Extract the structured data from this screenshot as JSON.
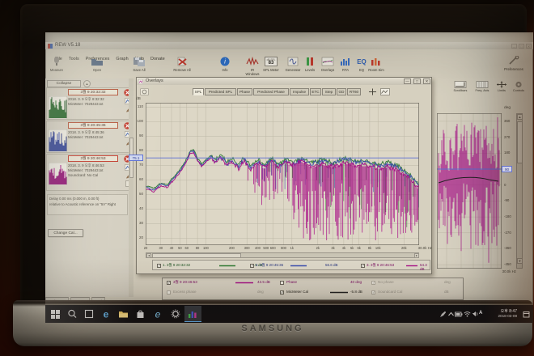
{
  "laptop": {
    "brand": "SAMSUNG"
  },
  "colors": {
    "green": "#2f7a33",
    "green_dark": "#1e5422",
    "blue": "#3c4fae",
    "blue_dark": "#28367d",
    "magenta": "#a81187",
    "magenta_dark": "#7a0c60",
    "cal": "#222222",
    "cursor": "#5b6fd4",
    "accent_tab": "#e9e5d8",
    "taskbar": "#0d0d10"
  },
  "app": {
    "title": "REW V5.18",
    "menu": [
      "File",
      "Tools",
      "Preferences",
      "Graph",
      "Help",
      "Donate"
    ],
    "toolbar_left": [
      {
        "label": "Measure",
        "icon": "measure-icon"
      },
      {
        "label": "Open",
        "icon": "open-icon"
      },
      {
        "label": "Save All",
        "icon": "save-all-icon"
      },
      {
        "label": "Remove All",
        "icon": "remove-all-icon"
      },
      {
        "label": "Info",
        "icon": "info-icon"
      }
    ],
    "toolbar_right": [
      {
        "label": "IR Windows",
        "icon": "ir-windows-icon"
      },
      {
        "label": "SPL Meter",
        "icon": "spl-meter-icon"
      },
      {
        "label": "Generator",
        "icon": "generator-icon"
      },
      {
        "label": "Levels",
        "icon": "levels-icon"
      },
      {
        "label": "Overlays",
        "icon": "overlays-icon"
      },
      {
        "label": "RTA",
        "icon": "rta-icon"
      },
      {
        "label": "EQ",
        "icon": "eq-icon"
      },
      {
        "label": "Room Sim",
        "icon": "room-sim-icon"
      }
    ],
    "spl_meter": {
      "unit": "dB SPL",
      "value": "83"
    },
    "preferences_label": "Preferences",
    "graph_buttons": [
      {
        "label": "Scrollbars",
        "icon": "scrollbars-icon"
      },
      {
        "label": "Freq. Axis",
        "icon": "freq-axis-icon"
      },
      {
        "label": "Limits",
        "icon": "limits-icon"
      },
      {
        "label": "Controls",
        "icon": "controls-icon"
      }
    ],
    "status_bar": [
      "156/214MB",
      "48000 Hz",
      "16 Bit"
    ]
  },
  "measurements_panel": {
    "collapse_label": "Collapse",
    "items": [
      {
        "name": "3월 9 20:32:32",
        "date": "2018. 3. 9 오후 8:32:32",
        "mic": "MicMeter: 7029443.txt",
        "color": "green"
      },
      {
        "name": "3월 9 20:45:36",
        "date": "2018. 3. 9 오후 8:45:36",
        "mic": "MicMeter: 7029443.txt",
        "color": "blue"
      },
      {
        "name": "3월 9 20:46:53",
        "date": "2018. 3. 9 오후 8:46:53",
        "mic": "MicMeter: 7029443.txt",
        "soundcard": "Soundcard: No Cal",
        "color": "magenta"
      }
    ],
    "delay_line1": "Delay 0.00 ms (0.000 m, 0.00 ft)",
    "delay_line2": "relative to Acoustic reference on \"5V\" Right",
    "change_cal_label": "Change Cal..."
  },
  "overlays_window": {
    "title": "Overlays",
    "tabs": [
      "SPL",
      "Predicted SPL",
      "Phase",
      "Predicted Phase",
      "Impulse",
      "ETC",
      "Step",
      "GD",
      "RT60"
    ],
    "active_tab": "SPL",
    "y_axis": {
      "unit": "dB",
      "ticks": [
        110,
        100,
        90,
        80,
        70,
        60,
        50,
        40,
        30,
        20
      ],
      "cursor": "75.1"
    },
    "x_axis": {
      "ticks": [
        {
          "f": 20,
          "l": "20"
        },
        {
          "f": 30,
          "l": "30"
        },
        {
          "f": 40,
          "l": "40"
        },
        {
          "f": 50,
          "l": "50"
        },
        {
          "f": 60,
          "l": "60"
        },
        {
          "f": 80,
          "l": "80"
        },
        {
          "f": 100,
          "l": "100"
        },
        {
          "f": 200,
          "l": "200"
        },
        {
          "f": 300,
          "l": "300"
        },
        {
          "f": 400,
          "l": "400"
        },
        {
          "f": 500,
          "l": "500"
        },
        {
          "f": 600,
          "l": "600"
        },
        {
          "f": 800,
          "l": "800"
        },
        {
          "f": 1000,
          "l": "1k"
        },
        {
          "f": 2000,
          "l": "2k"
        },
        {
          "f": 3000,
          "l": "3k"
        },
        {
          "f": 4000,
          "l": "4k"
        },
        {
          "f": 5000,
          "l": "5k"
        },
        {
          "f": 6000,
          "l": "6k"
        },
        {
          "f": 8000,
          "l": "8k"
        },
        {
          "f": 10000,
          "l": "10k"
        },
        {
          "f": 20000,
          "l": "20k"
        }
      ],
      "end_label": "30.0k Hz"
    },
    "legend": [
      {
        "checked": true,
        "label": "1. 3월 9 20:32:32",
        "value": "57.5 dB",
        "color": "green"
      },
      {
        "checked": true,
        "label": "2. 3월 9 20:45:36",
        "value": "56.6 dB",
        "color": "blue"
      },
      {
        "checked": true,
        "label": "3. 3월 9 20:46:53",
        "value": "54.3 dB",
        "color": "magenta"
      }
    ]
  },
  "main_graph": {
    "deg_axis": {
      "unit": "deg",
      "ticks": [
        360,
        270,
        180,
        90,
        0,
        -90,
        -180,
        -270,
        -360,
        -450
      ],
      "cursor": "90"
    },
    "x_end_label": "30.0k Hz",
    "bottom_legend_rows": [
      [
        {
          "checked": true,
          "label": "3월 9 20:46:53",
          "color": "magenta",
          "line": "magenta",
          "value": "43.5 dB"
        },
        {
          "checked": false,
          "label": "Phase",
          "color": "magenta",
          "value": "40 deg"
        },
        {
          "checked": true,
          "label": "No phase",
          "disabled": true,
          "value": "deg"
        }
      ],
      [
        {
          "checked": false,
          "label": "Excess phase",
          "disabled": true,
          "value": "deg"
        },
        {
          "checked": true,
          "label": "MicMeter Cal",
          "color": "cal",
          "line": "cal",
          "value": "-5.8 dB"
        },
        {
          "checked": true,
          "label": "Soundcard Cal",
          "disabled": true,
          "value": "dB"
        }
      ]
    ]
  },
  "taskbar": {
    "icons": [
      {
        "name": "start"
      },
      {
        "name": "search"
      },
      {
        "name": "task-view"
      },
      {
        "name": "edge"
      },
      {
        "name": "file-explorer"
      },
      {
        "name": "store"
      },
      {
        "name": "internet-explorer"
      },
      {
        "name": "settings"
      },
      {
        "name": "rew",
        "active": true
      }
    ],
    "tray": {
      "ime": "A",
      "time": "오후 8:47",
      "date": "2018-03-09"
    }
  },
  "chart_data": [
    {
      "type": "line",
      "title": "Overlays - SPL",
      "xlabel": "Hz",
      "ylabel": "dB",
      "xscale": "log",
      "xlim": [
        20,
        30000
      ],
      "ylim": [
        20,
        110
      ],
      "cursor_spl": 75.1,
      "x": [
        20,
        25,
        30,
        36,
        42,
        50,
        58,
        66,
        72,
        80,
        90,
        100,
        115,
        130,
        150,
        175,
        200,
        240,
        280,
        330,
        400,
        480,
        580,
        700,
        850,
        1000,
        1300,
        1700,
        2200,
        3000,
        4000,
        5500,
        7500,
        10000,
        13000,
        17000,
        22000,
        30000
      ],
      "series": [
        {
          "name": "1. 3월 9 20:32:32",
          "color": "green",
          "values": [
            56,
            54,
            58,
            57,
            62,
            67,
            73,
            80,
            81,
            75,
            71,
            74,
            77,
            74,
            77,
            72,
            75,
            70,
            75,
            69,
            74,
            70,
            75,
            71,
            74,
            72,
            75,
            72,
            74,
            72,
            75,
            73,
            73,
            71,
            72,
            70,
            65,
            57
          ]
        },
        {
          "name": "2. 3월 9 20:45:36",
          "color": "blue",
          "values": [
            55,
            53,
            57,
            56,
            61,
            66,
            72,
            79,
            80,
            74,
            70,
            73,
            76,
            73,
            76,
            71,
            74,
            69,
            74,
            68,
            73,
            69,
            74,
            70,
            73,
            71,
            74,
            71,
            73,
            71,
            74,
            72,
            72,
            70,
            71,
            69,
            64,
            56
          ]
        },
        {
          "name": "3. 3월 9 20:46:53",
          "color": "magenta",
          "values": [
            54,
            52,
            56,
            55,
            60,
            65,
            71,
            78,
            79,
            73,
            69,
            72,
            75,
            72,
            75,
            70,
            73,
            68,
            73,
            67,
            72,
            68,
            73,
            69,
            72,
            70,
            73,
            69,
            71,
            69,
            72,
            70,
            70,
            68,
            69,
            67,
            62,
            54
          ]
        }
      ],
      "note": "deep comb-filter nulls above 300 Hz, densest 1k-20k (magenta deepest)"
    },
    {
      "type": "line",
      "title": "Main window phase pane (partially hidden behind Overlays)",
      "ylabel": "deg",
      "ylim": [
        -450,
        405
      ],
      "cursor_deg": 90,
      "series": [
        {
          "name": "3월 9 20:46:53 phase",
          "color": "magenta",
          "appearance": "dense wrapped phase spikes spanning -360..+180 deg"
        },
        {
          "name": "MicMeter Cal",
          "color": "cal",
          "values_approx_deg": [
            [
              10000,
              40
            ],
            [
              15000,
              48
            ],
            [
              20000,
              42
            ],
            [
              30000,
              25
            ]
          ]
        }
      ]
    }
  ]
}
